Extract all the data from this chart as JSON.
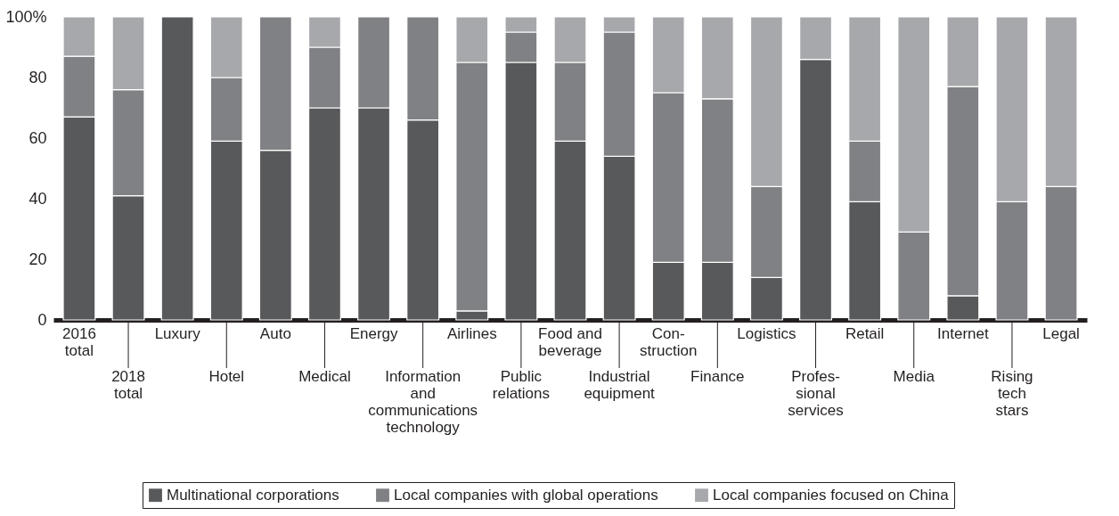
{
  "chart_data": {
    "type": "bar",
    "stacked": true,
    "categories": [
      "2016\ntotal",
      "2018\ntotal",
      "Luxury",
      "Hotel",
      "Auto",
      "Medical",
      "Energy",
      "Information\nand\ncommunications\ntechnology",
      "Airlines",
      "Public\nrelations",
      "Food and\nbeverage",
      "Industrial\nequipment",
      "Con-\nstruction",
      "Finance",
      "Logistics",
      "Profes-\nsional\nservices",
      "Retail",
      "Media",
      "Internet",
      "Rising\ntech\nstars",
      "Legal"
    ],
    "series": [
      {
        "name": "Multinational corporations",
        "color": "#58595b",
        "values": [
          67,
          41,
          100,
          59,
          56,
          70,
          70,
          66,
          3,
          85,
          59,
          54,
          19,
          19,
          14,
          86,
          39,
          0,
          8,
          0,
          0
        ]
      },
      {
        "name": "Local companies with global operations",
        "color": "#808184",
        "values": [
          20,
          35,
          0,
          21,
          44,
          20,
          30,
          34,
          82,
          10,
          26,
          41,
          56,
          54,
          30,
          0,
          20,
          29,
          69,
          39,
          44
        ]
      },
      {
        "name": "Local companies focused on China",
        "color": "#a7a8ab",
        "values": [
          13,
          24,
          0,
          20,
          0,
          10,
          0,
          0,
          15,
          5,
          15,
          5,
          25,
          27,
          56,
          14,
          41,
          71,
          23,
          61,
          56
        ]
      }
    ],
    "ylim": [
      0,
      100
    ],
    "yticks": [
      0,
      20,
      40,
      60,
      80,
      {
        "value": 100,
        "label": "100%"
      }
    ],
    "grid": false,
    "legend": "bottom"
  }
}
